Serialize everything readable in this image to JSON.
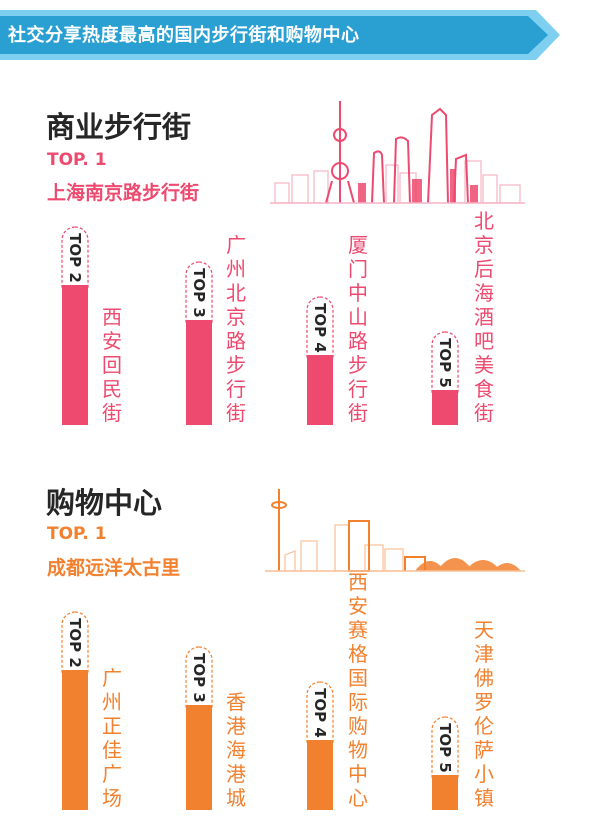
{
  "banner": {
    "title": "社交分享热度最高的国内步行街和购物中心"
  },
  "colors": {
    "banner": "#2a9fd2",
    "banner_light": "#7fd0f0",
    "street": "#ee4a6f",
    "mall": "#f2812f",
    "text_dark": "#262626"
  },
  "street": {
    "title": "商业步行街",
    "top1_label": "TOP. 1",
    "top1_name": "上海南京路步行街",
    "skyline_icon": "shanghai-skyline-icon"
  },
  "mall": {
    "title": "购物中心",
    "top1_label": "TOP. 1",
    "top1_name": "成都远洋太古里",
    "skyline_icon": "chengdu-skyline-icon"
  },
  "chart_data": [
    {
      "type": "bar",
      "title": "商业步行街",
      "categories": [
        "西安回民街",
        "广州北京路步行街",
        "厦门中山路步行街",
        "北京后海酒吧美食街"
      ],
      "rank_labels": [
        "TOP 2",
        "TOP 3",
        "TOP 4",
        "TOP 5"
      ],
      "values": [
        4,
        3,
        2,
        1
      ],
      "color": "#ee4a6f"
    },
    {
      "type": "bar",
      "title": "购物中心",
      "categories": [
        "广州正佳广场",
        "香港海港城",
        "西安赛格国际购物中心",
        "天津佛罗伦萨小镇"
      ],
      "rank_labels": [
        "TOP 2",
        "TOP 3",
        "TOP 4",
        "TOP 5"
      ],
      "values": [
        4,
        3,
        2,
        1
      ],
      "color": "#f2812f"
    }
  ]
}
